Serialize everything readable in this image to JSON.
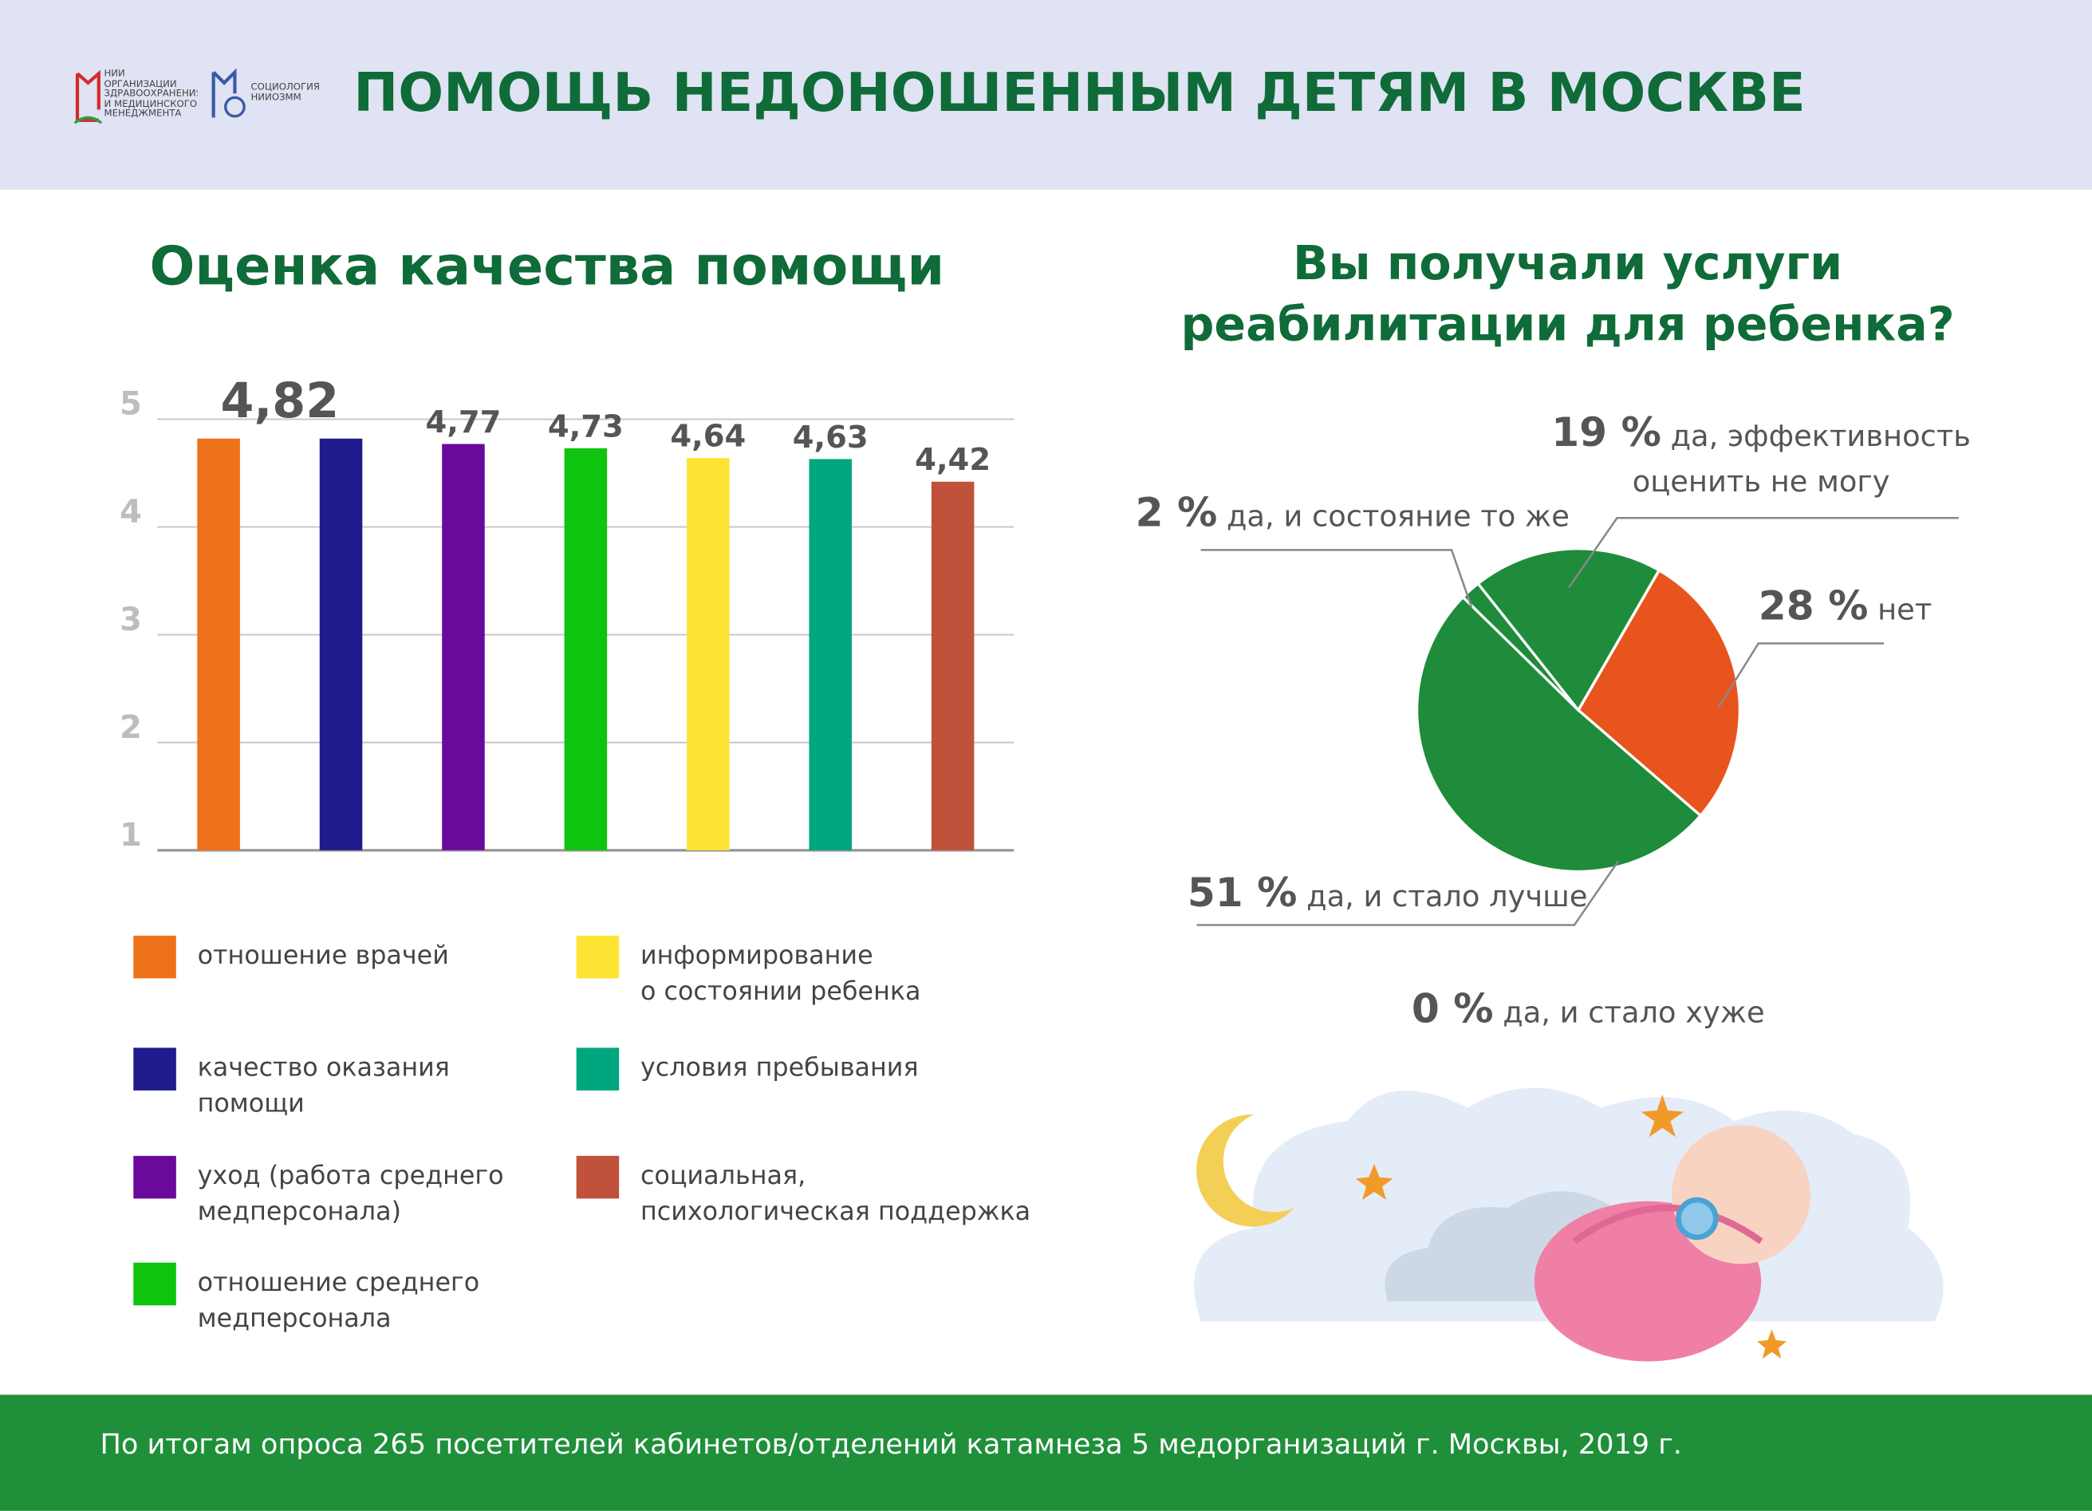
{
  "header": {
    "title": "ПОМОЩЬ НЕДОНОШЕННЫМ ДЕТЯМ В МОСКВЕ",
    "logos": [
      "НИИ\nОРГАНИЗАЦИИ\nЗДРАВООХРАНЕНИЯ\nИ МЕДИЦИНСКОГО\nМЕНЕДЖМЕНТА",
      "СОЦИОЛОГИЯ\nНИИОЗММ"
    ]
  },
  "chart_data": [
    {
      "type": "bar",
      "title": "Оценка качества помощи",
      "categories": [
        "отношение врачей",
        "качество оказания\nпомощи",
        "уход (работа среднего\nмедперсонала)",
        "отношение среднего\nмедперсонала",
        "информирование\nо состоянии ребенка",
        "условия пребывания",
        "социальная,\nпсихологическая поддержка"
      ],
      "values": [
        4.82,
        4.82,
        4.77,
        4.73,
        4.64,
        4.63,
        4.42
      ],
      "value_labels": [
        "4,82",
        null,
        "4,77",
        "4,73",
        "4,64",
        "4,63",
        "4,42"
      ],
      "colors": [
        "#ee7219",
        "#1f1b8c",
        "#6a0a9c",
        "#0ec40e",
        "#fde433",
        "#00a67e",
        "#c0513b"
      ],
      "ylim": [
        1,
        5
      ],
      "yticks": [
        1,
        2,
        3,
        4,
        5
      ],
      "grid": true
    },
    {
      "type": "pie",
      "title": "Вы получали услуги\nреабилитации для ребенка?",
      "categories": [
        "нет",
        "да, и стало лучше",
        "да, и состояние то же",
        "да, эффективность\nоценить не могу",
        "да, и стало хуже"
      ],
      "values": [
        28,
        51,
        2,
        19,
        0
      ],
      "value_labels": [
        "28 %",
        "51 %",
        "2 %",
        "19 %",
        "0 %"
      ],
      "colors": [
        "#e8541e",
        "#1e8c3a",
        "#1e8c3a",
        "#1e8c3a",
        "#1e8c3a"
      ]
    }
  ],
  "footer": {
    "text": "По итогам опроса 265 посетителей кабинетов/отделений катамнеза 5 медорганизаций г. Москвы, 2019 г."
  }
}
